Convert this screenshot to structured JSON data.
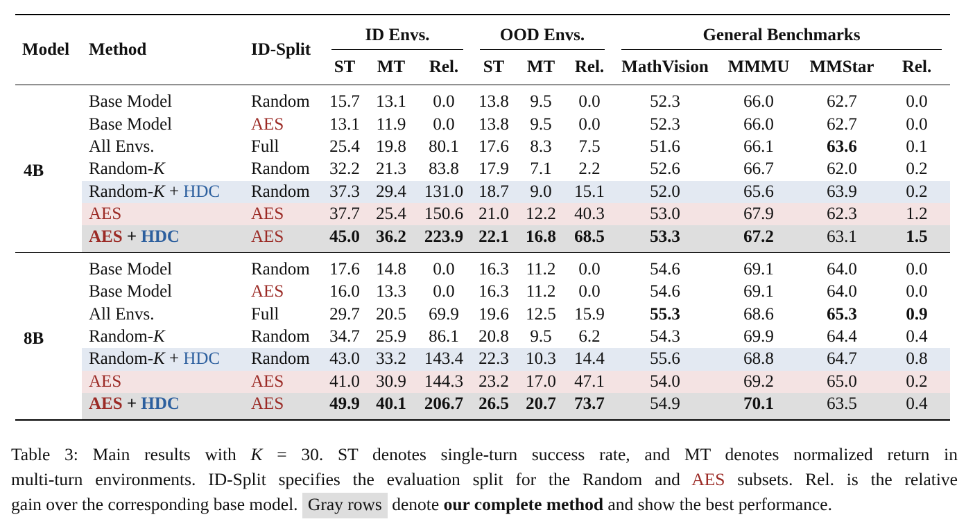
{
  "header": {
    "model": "Model",
    "method": "Method",
    "id_split": "ID-Split",
    "groups": [
      "ID Envs.",
      "OOD Envs.",
      "General Benchmarks"
    ],
    "subcols": [
      "ST",
      "MT",
      "Rel.",
      "ST",
      "MT",
      "Rel.",
      "MathVision",
      "MMMU",
      "MMStar",
      "Rel."
    ]
  },
  "labels": {
    "base_model": "Base Model",
    "all_envs": "All Envs.",
    "random_k_prefix": "Random-",
    "k": "K",
    "aes": "AES",
    "hdc": "HDC",
    "plus": " + ",
    "random": "Random",
    "full": "Full"
  },
  "blocks": [
    {
      "model": "4B",
      "rows": [
        [
          "15.7",
          "13.1",
          "0.0",
          "13.8",
          "9.5",
          "0.0",
          "52.3",
          "66.0",
          "62.7",
          "0.0"
        ],
        [
          "13.1",
          "11.9",
          "0.0",
          "13.8",
          "9.5",
          "0.0",
          "52.3",
          "66.0",
          "62.7",
          "0.0"
        ],
        [
          "25.4",
          "19.8",
          "80.1",
          "17.6",
          "8.3",
          "7.5",
          "51.6",
          "66.1",
          "63.6",
          "0.1"
        ],
        [
          "32.2",
          "21.3",
          "83.8",
          "17.9",
          "7.1",
          "2.2",
          "52.6",
          "66.7",
          "62.0",
          "0.2"
        ],
        [
          "37.3",
          "29.4",
          "131.0",
          "18.7",
          "9.0",
          "15.1",
          "52.0",
          "65.6",
          "63.9",
          "0.2"
        ],
        [
          "37.7",
          "25.4",
          "150.6",
          "21.0",
          "12.2",
          "40.3",
          "53.0",
          "67.9",
          "62.3",
          "1.2"
        ],
        [
          "45.0",
          "36.2",
          "223.9",
          "22.1",
          "16.8",
          "68.5",
          "53.3",
          "67.2",
          "63.1",
          "1.5"
        ]
      ]
    },
    {
      "model": "8B",
      "rows": [
        [
          "17.6",
          "14.8",
          "0.0",
          "16.3",
          "11.2",
          "0.0",
          "54.6",
          "69.1",
          "64.0",
          "0.0"
        ],
        [
          "16.0",
          "13.3",
          "0.0",
          "16.3",
          "11.2",
          "0.0",
          "54.6",
          "69.1",
          "64.0",
          "0.0"
        ],
        [
          "29.7",
          "20.5",
          "69.9",
          "19.6",
          "12.5",
          "15.9",
          "55.3",
          "68.6",
          "65.3",
          "0.9"
        ],
        [
          "34.7",
          "25.9",
          "86.1",
          "20.8",
          "9.5",
          "6.2",
          "54.3",
          "69.9",
          "64.4",
          "0.4"
        ],
        [
          "43.0",
          "33.2",
          "143.4",
          "22.3",
          "10.3",
          "14.4",
          "55.6",
          "68.8",
          "64.7",
          "0.8"
        ],
        [
          "41.0",
          "30.9",
          "144.3",
          "23.2",
          "17.0",
          "47.1",
          "54.0",
          "69.2",
          "65.0",
          "0.2"
        ],
        [
          "49.9",
          "40.1",
          "206.7",
          "26.5",
          "20.7",
          "73.7",
          "54.9",
          "70.1",
          "63.5",
          "0.4"
        ]
      ]
    }
  ],
  "caption": {
    "l1a": "Table 3: Main results with ",
    "k": "K",
    "eq": " = 30. ",
    "l1b": "ST denotes single-turn success rate, and MT denotes normalized return in",
    "l2a": "multi-turn environments. ID-Split specifies the evaluation split for the Random and ",
    "aes": "AES",
    "l2b": " subsets. Rel. is the relative",
    "l3a": "gain over the corresponding base model. ",
    "gray_rows": "Gray rows",
    "l3b": " denote ",
    "bold": "our complete method",
    "l3c": " and show the best performance."
  },
  "colors": {
    "aes": "#9b2a25",
    "hdc": "#2c5f9e",
    "blue_row": "#e3e9f2",
    "pink_row": "#f4e3e3",
    "gray_row": "#dedede"
  }
}
